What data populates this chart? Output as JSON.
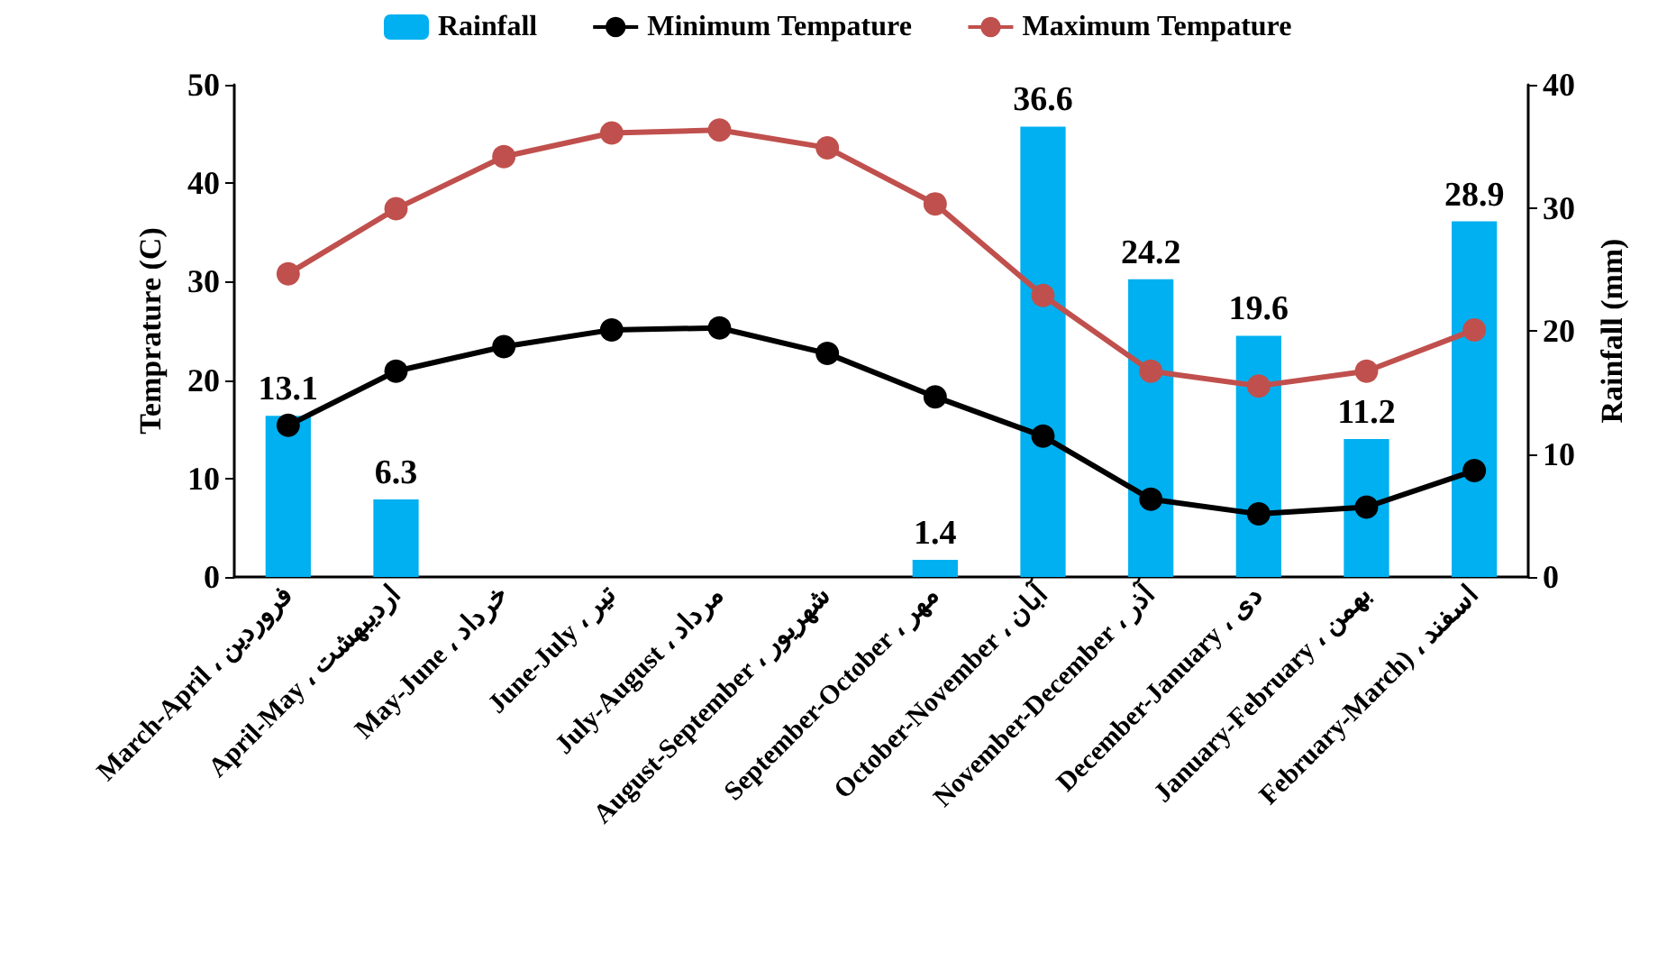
{
  "chart_data": {
    "type": "bar",
    "xlabel": null,
    "ylabel": "Temprature (C)",
    "y2label": "Rainfall (mm)",
    "categories": [
      "March-April ، فروردین",
      "April-May ، اردیبهشت",
      "May-June ، خرداد",
      "June-July ، تیر",
      "July-August ، مرداد",
      "August-September ، شهریور",
      "September-October ، مهر",
      "October-November ، آبان",
      "November-December ، آذر",
      "December-January ، دی",
      "January-February ، بهمن",
      "February-March) ، اسفند"
    ],
    "series": [
      {
        "name": "Rainfall",
        "axis": "y2",
        "color": "#00b0f0",
        "values": [
          13.1,
          6.3,
          null,
          null,
          null,
          null,
          1.4,
          36.6,
          24.2,
          19.6,
          11.2,
          28.9
        ],
        "value_labels": [
          "13.1",
          "6.3",
          null,
          null,
          null,
          null,
          "1.4",
          "36.6",
          "24.2",
          "19.6",
          "11.2",
          "28.9"
        ]
      },
      {
        "name": "Minimum Tempature",
        "type": "line",
        "color": "#000000",
        "values": [
          15.4,
          20.9,
          23.4,
          25.1,
          25.3,
          22.7,
          18.3,
          14.3,
          7.9,
          6.4,
          7.1,
          10.8
        ]
      },
      {
        "name": "Maximum Tempature",
        "type": "line",
        "color": "#c0504d",
        "values": [
          30.8,
          37.4,
          42.7,
          45.1,
          45.4,
          43.6,
          37.9,
          28.6,
          20.9,
          19.4,
          20.9,
          25.1
        ]
      }
    ],
    "ylim": [
      0,
      50
    ],
    "yticks": [
      0,
      10,
      20,
      30,
      40,
      50
    ],
    "y2lim": [
      0,
      40
    ],
    "y2ticks": [
      0,
      10,
      20,
      30,
      40
    ],
    "marker": "circle",
    "legend": "top",
    "grid": false
  }
}
